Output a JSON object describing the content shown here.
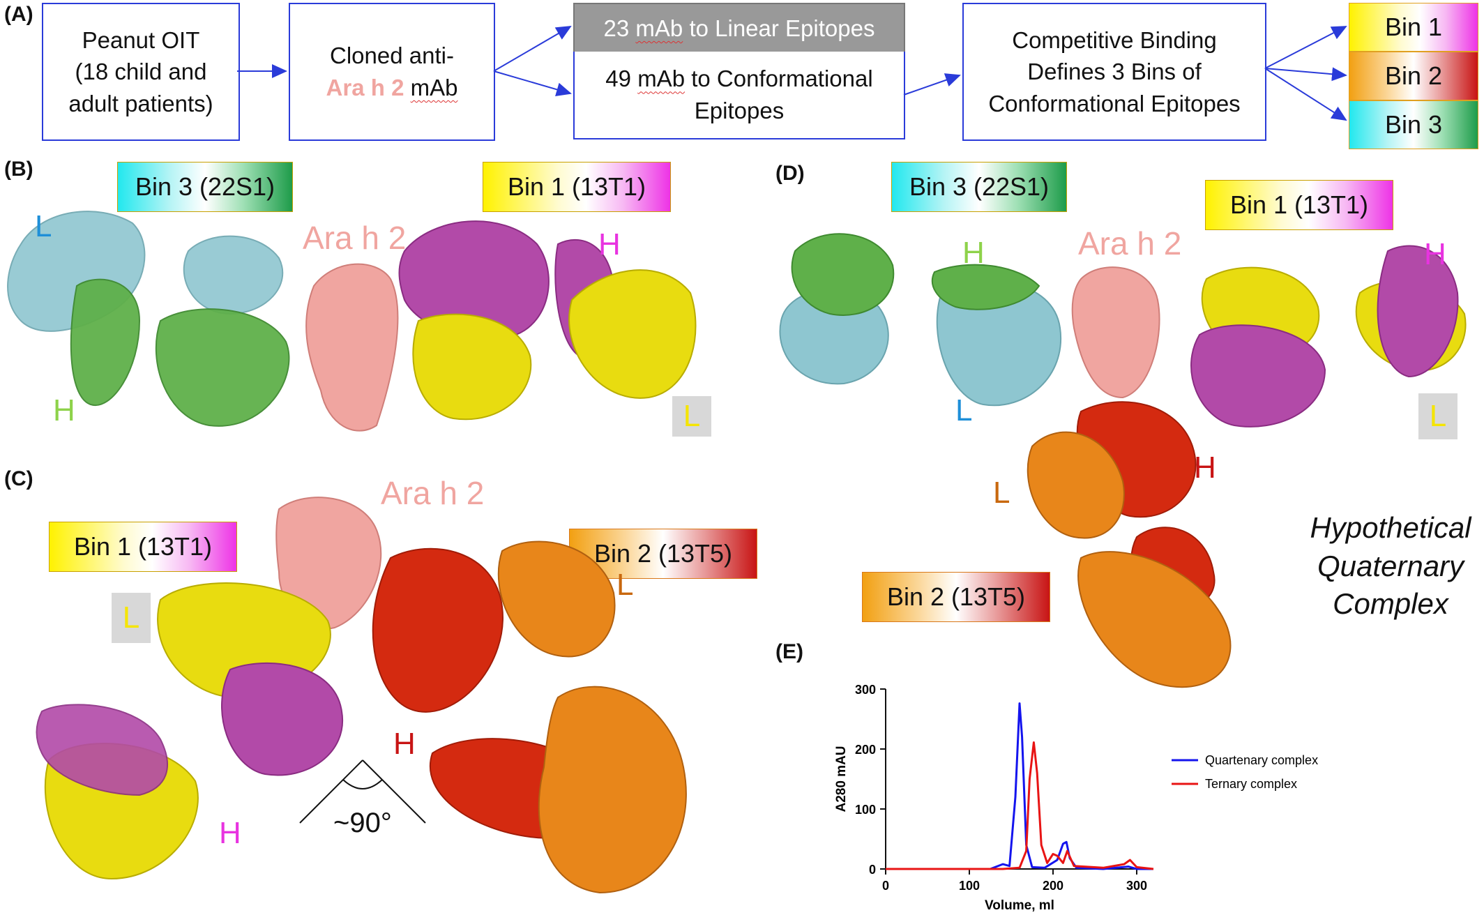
{
  "panels": {
    "a": "(A)",
    "b": "(B)",
    "c": "(C)",
    "d": "(D)",
    "e": "(E)"
  },
  "flow": {
    "box1_line1": "Peanut OIT",
    "box1_line2": "(18 child and",
    "box1_line3": "adult patients)",
    "box2_line1": "Cloned anti-",
    "box2_ara": "Ara h 2",
    "box2_mab": "mAb",
    "linear_count": "23",
    "linear_mab": "mAb",
    "linear_rest": "to Linear Epitopes",
    "conf_count": "49",
    "conf_mab": "mAb",
    "conf_rest": "to Conformational",
    "conf_line2": "Epitopes",
    "box4_line1": "Competitive Binding",
    "box4_line2": "Defines 3 Bins of",
    "box4_line3": "Conformational Epitopes"
  },
  "bins": {
    "bin1": "Bin 1",
    "bin2": "Bin 2",
    "bin3": "Bin 3"
  },
  "structure_labels": {
    "bin1_13t1": "Bin 1 (13T1)",
    "bin2_13t5": "Bin 2 (13T5)",
    "bin3_22s1": "Bin 3 (22S1)",
    "ara_h2": "Ara h 2",
    "heavy": "H",
    "light": "L",
    "angle": "~90°",
    "hypothetical_l1": "Hypothetical",
    "hypothetical_l2": "Quaternary",
    "hypothetical_l3": "Complex"
  },
  "colors": {
    "arrow_blue": "#2a3bd9",
    "ara_h2_salmon": "#f0a5a0",
    "bin3_heavy_green": "#5fb04a",
    "bin3_light_cyan": "#8ec6d0",
    "bin1_heavy_magenta": "#b24aa8",
    "bin1_light_yellow": "#e8dc10",
    "bin2_heavy_red": "#d42a10",
    "bin2_light_orange": "#e8861a"
  },
  "chart_data": {
    "type": "line",
    "xlabel": "Volume, ml",
    "ylabel": "A280 mAU",
    "xlim": [
      0,
      320
    ],
    "ylim": [
      0,
      300
    ],
    "xticks": [
      0,
      100,
      200,
      300
    ],
    "yticks": [
      0,
      100,
      200,
      300
    ],
    "legend_position": "right",
    "series": [
      {
        "name": "Quartenary complex",
        "color": "#1414ee",
        "x": [
          0,
          125,
          140,
          148,
          155,
          160,
          163,
          168,
          175,
          190,
          205,
          212,
          216,
          220,
          228,
          260,
          290,
          300,
          320
        ],
        "y": [
          0,
          0,
          8,
          5,
          120,
          276,
          220,
          40,
          3,
          2,
          15,
          42,
          45,
          18,
          2,
          0,
          4,
          0,
          0
        ]
      },
      {
        "name": "Ternary complex",
        "color": "#e81414",
        "x": [
          0,
          140,
          160,
          168,
          172,
          177,
          181,
          186,
          193,
          200,
          205,
          212,
          217,
          225,
          260,
          285,
          292,
          300,
          320
        ],
        "y": [
          0,
          0,
          2,
          30,
          150,
          211,
          160,
          40,
          10,
          25,
          22,
          10,
          30,
          5,
          2,
          8,
          15,
          3,
          0
        ]
      }
    ]
  }
}
